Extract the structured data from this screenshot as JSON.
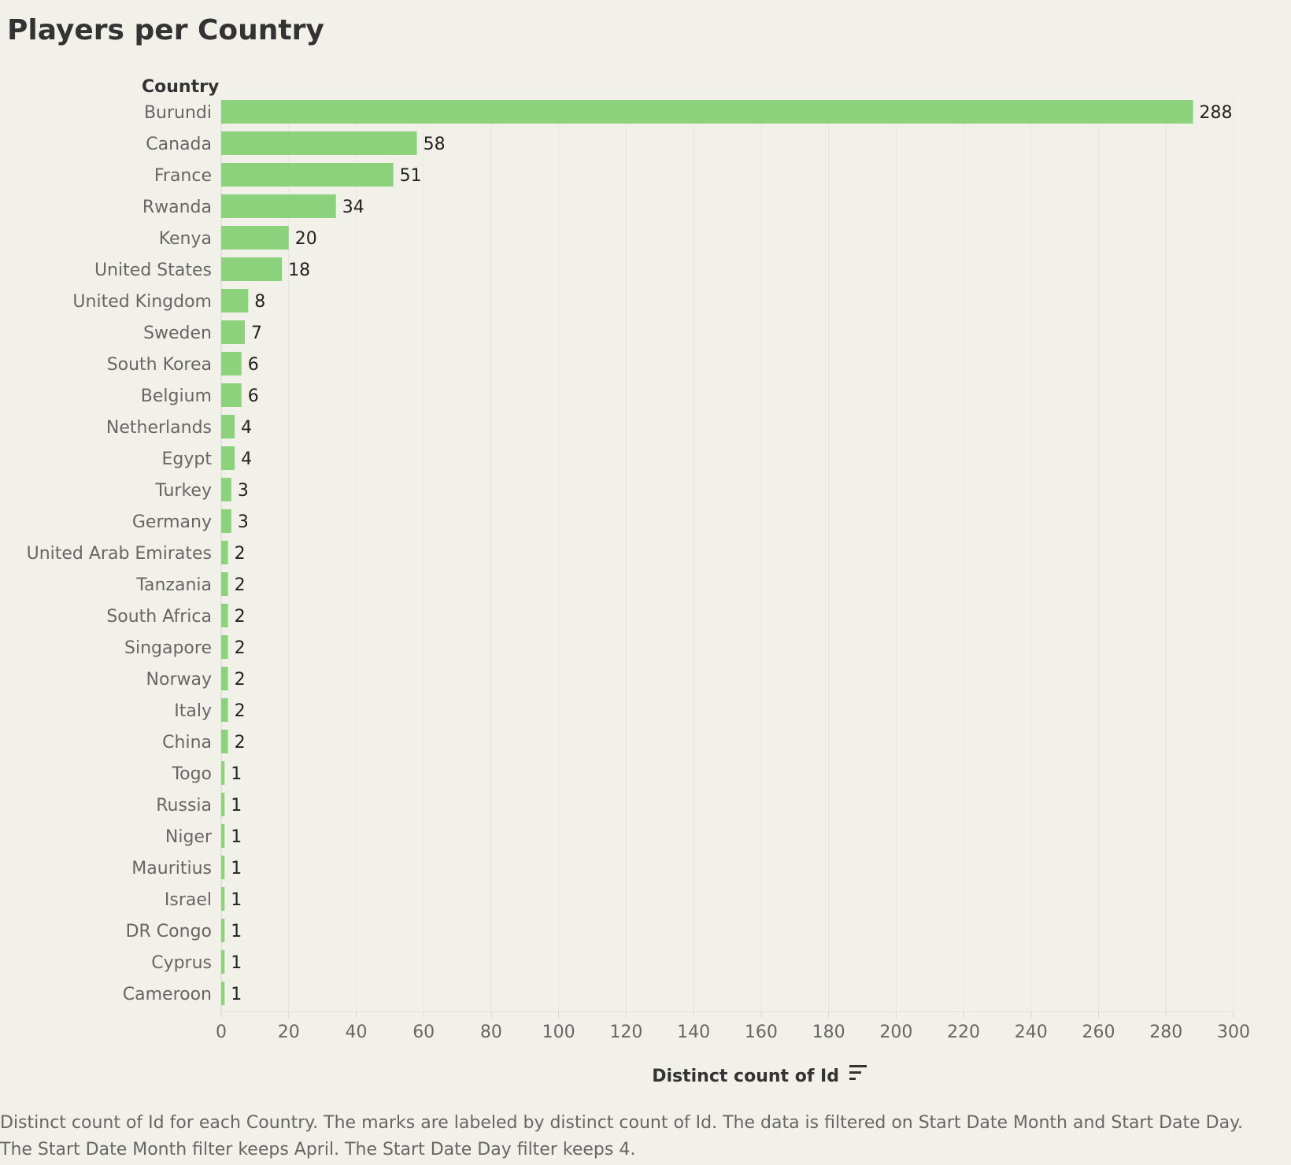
{
  "page": {
    "title": "Players per Country",
    "caption_line1": "Distinct count of Id for each Country.  The marks are labeled by distinct count of Id. The data is filtered on Start Date Month and Start Date Day.",
    "caption_line2": "The Start Date Month filter keeps April. The Start Date Day filter keeps 4."
  },
  "colors": {
    "background": "#f1f1ea",
    "bar": "#8cd27c",
    "gridline": "#e6e6df",
    "tick_text": "#666666",
    "label_text": "#222222",
    "header_text": "#333333"
  },
  "icons": {
    "sort": "sort-descending-icon"
  },
  "chart_data": {
    "type": "bar",
    "orientation": "horizontal",
    "title": "Players per Country",
    "row_header": "Country",
    "xlabel": "Distinct count of Id",
    "xlim": [
      0,
      300
    ],
    "xticks": [
      0,
      20,
      40,
      60,
      80,
      100,
      120,
      140,
      160,
      180,
      200,
      220,
      240,
      260,
      280,
      300
    ],
    "grid": true,
    "categories": [
      "Burundi",
      "Canada",
      "France",
      "Rwanda",
      "Kenya",
      "United States",
      "United Kingdom",
      "Sweden",
      "South Korea",
      "Belgium",
      "Netherlands",
      "Egypt",
      "Turkey",
      "Germany",
      "United Arab Emirates",
      "Tanzania",
      "South Africa",
      "Singapore",
      "Norway",
      "Italy",
      "China",
      "Togo",
      "Russia",
      "Niger",
      "Mauritius",
      "Israel",
      "DR Congo",
      "Cyprus",
      "Cameroon"
    ],
    "values": [
      288,
      58,
      51,
      34,
      20,
      18,
      8,
      7,
      6,
      6,
      4,
      4,
      3,
      3,
      2,
      2,
      2,
      2,
      2,
      2,
      2,
      1,
      1,
      1,
      1,
      1,
      1,
      1,
      1
    ]
  }
}
